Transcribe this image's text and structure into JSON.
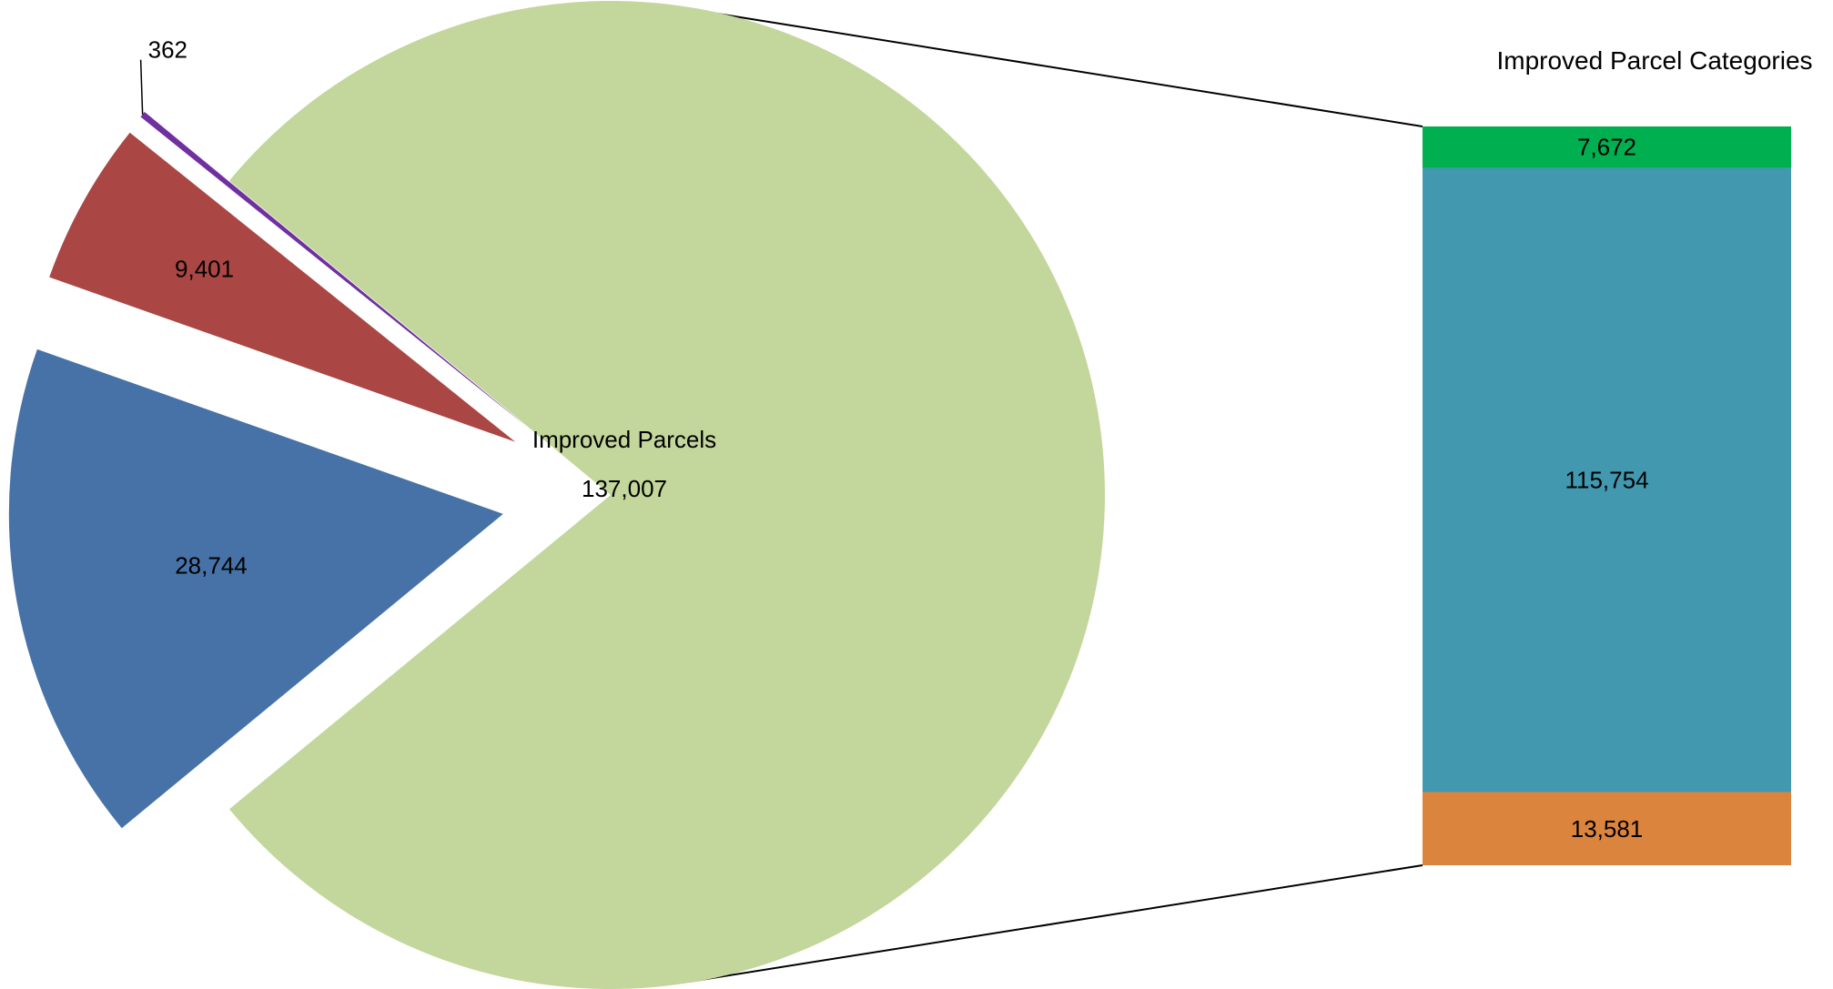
{
  "chart_data": {
    "type": "pie",
    "subtype": "bar-of-pie",
    "title": "",
    "pie": {
      "slices": [
        {
          "label": "Improved Parcels",
          "value": 137007,
          "value_label": "137,007",
          "color": "#c3d69b",
          "exploded": false
        },
        {
          "label": "",
          "value": 28744,
          "value_label": "28,744",
          "color": "#4672a7",
          "exploded": true
        },
        {
          "label": "",
          "value": 9401,
          "value_label": "9,401",
          "color": "#aa4643",
          "exploded": true
        },
        {
          "label": "",
          "value": 362,
          "value_label": "362",
          "color": "#7030a0",
          "exploded": true
        }
      ]
    },
    "bar": {
      "title": "Improved Parcel Categories",
      "segments": [
        {
          "value": 7672,
          "value_label": "7,672",
          "color": "#00b050"
        },
        {
          "value": 115754,
          "value_label": "115,754",
          "color": "#4198af"
        },
        {
          "value": 13581,
          "value_label": "13,581",
          "color": "#db843d"
        }
      ]
    },
    "connector_color": "#000000",
    "background": "#ffffff"
  }
}
